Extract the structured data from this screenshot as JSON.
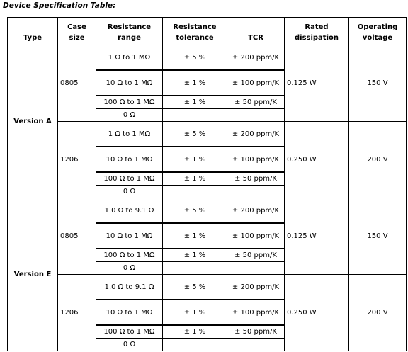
{
  "title": "Device Specification Table:",
  "table": {
    "headers": [
      "Type",
      "Case size",
      "Resistance range",
      "Resistance tolerance",
      "TCR",
      "Rated dissipation",
      "Operating voltage"
    ],
    "groups": [
      {
        "type": "Version A",
        "cases": [
          {
            "size": "0805",
            "dissipation": "0.125 W",
            "voltage": "150 V",
            "rows": [
              [
                "1 Ω to 1 MΩ",
                "± 5 %",
                "± 200 ppm/K"
              ],
              [
                "10 Ω to 1 MΩ",
                "± 1 %",
                "± 100 ppm/K"
              ],
              [
                "100 Ω to 1 MΩ",
                "± 1 %",
                "± 50 ppm/K"
              ],
              [
                "0 Ω"
              ]
            ]
          },
          {
            "size": "1206",
            "dissipation": "0.250 W",
            "voltage": "200 V",
            "rows": [
              [
                "1 Ω to 1 MΩ",
                "± 5 %",
                "± 200 ppm/K"
              ],
              [
                "10 Ω to 1 MΩ",
                "± 1 %",
                "± 100 ppm/K"
              ],
              [
                "100 Ω to 1 MΩ",
                "± 1 %",
                "± 50 ppm/K"
              ],
              [
                "0 Ω"
              ]
            ]
          }
        ]
      },
      {
        "type": "Version E",
        "cases": [
          {
            "size": "0805",
            "dissipation": "0.125 W",
            "voltage": "150 V",
            "rows": [
              [
                "1.0 Ω to 9.1 Ω",
                "± 5 %",
                "± 200 ppm/K"
              ],
              [
                "10 Ω to 1 MΩ",
                "± 1 %",
                "± 100 ppm/K"
              ],
              [
                "100 Ω to 1 MΩ",
                "± 1 %",
                "± 50 ppm/K"
              ],
              [
                "0 Ω"
              ]
            ]
          },
          {
            "size": "1206",
            "dissipation": "0.250 W",
            "voltage": "200 V",
            "rows": [
              [
                "1.0 Ω to 9.1 Ω",
                "± 5 %",
                "± 200 ppm/K"
              ],
              [
                "10 Ω to 1 MΩ",
                "± 1 %",
                "± 100 ppm/K"
              ],
              [
                "100 Ω to 1 MΩ",
                "± 1 %",
                "± 50 ppm/K"
              ],
              [
                "0 Ω"
              ]
            ]
          }
        ]
      }
    ]
  }
}
